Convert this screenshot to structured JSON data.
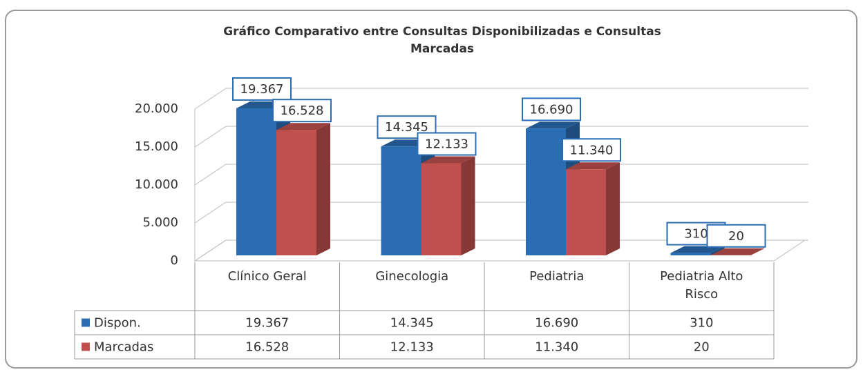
{
  "chart_data": {
    "type": "bar",
    "title": "Gráfico Comparativo entre Consultas Disponibilizadas e Consultas Marcadas",
    "categories": [
      "Clínico Geral",
      "Ginecologia",
      "Pediatria",
      "Pediatria Alto Risco"
    ],
    "series": [
      {
        "name": "Dispon.",
        "color": "#2a6db3",
        "values": [
          19367,
          14345,
          16690,
          310
        ],
        "value_labels": [
          "19.367",
          "14.345",
          "16.690",
          "310"
        ]
      },
      {
        "name": "Marcadas",
        "color": "#c0504d",
        "values": [
          16528,
          12133,
          11340,
          20
        ],
        "value_labels": [
          "16.528",
          "12.133",
          "11.340",
          "20"
        ]
      }
    ],
    "ylim": [
      0,
      20000
    ],
    "yticks": [
      0,
      {
        "value": 5000,
        "label": "5.000"
      },
      {
        "value": 10000,
        "label": "10.000"
      },
      {
        "value": 15000,
        "label": "15.000"
      },
      {
        "value": 20000,
        "label": "20.000"
      }
    ],
    "grid": true,
    "data_table": true
  }
}
